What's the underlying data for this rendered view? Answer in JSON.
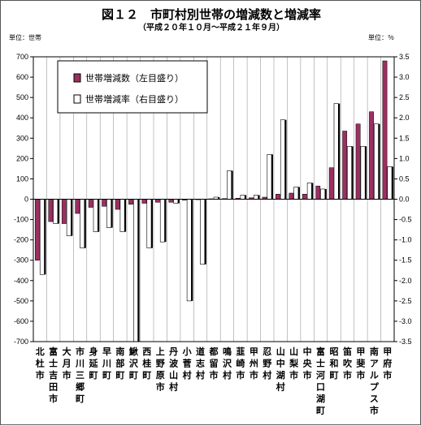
{
  "chart_data": {
    "type": "bar",
    "title": "図１２　市町村別世帯の増減数と増減率",
    "subtitle": "（平成２０年１０月～平成２１年９月）",
    "left_unit": "単位：世帯",
    "right_unit": "単位：％",
    "left_axis": {
      "min": -700,
      "max": 700,
      "step": 100,
      "ticks": [
        "700",
        "600",
        "500",
        "400",
        "300",
        "200",
        "100",
        "0",
        "-100",
        "-200",
        "-300",
        "-400",
        "-500",
        "-600",
        "-700"
      ]
    },
    "right_axis": {
      "min": -3.5,
      "max": 3.5,
      "step": 0.5,
      "ticks": [
        "3.5",
        "3.0",
        "2.5",
        "2.0",
        "1.5",
        "1.0",
        "0.5",
        "0.0",
        "-0.5",
        "-1.0",
        "-1.5",
        "-2.0",
        "-2.5",
        "-3.0",
        "-3.5"
      ]
    },
    "categories": [
      "北杜市",
      "富士吉田市",
      "大月市",
      "市川三郷町",
      "身延町",
      "早川町",
      "南部町",
      "鰍沢町",
      "西桂町",
      "上野原市",
      "丹波山村",
      "小菅村",
      "道志村",
      "都留市",
      "鳴沢村",
      "韮崎市",
      "甲州市",
      "忍野村",
      "山中湖村",
      "山梨市",
      "中央市",
      "富士河口湖町",
      "昭和町",
      "笛吹市",
      "甲斐市",
      "南アルプス市",
      "甲府市"
    ],
    "series": [
      {
        "name": "世帯増減数（左目盛り）",
        "color": "#9c2f62",
        "values": [
          -300,
          -110,
          -120,
          -70,
          -40,
          -35,
          -50,
          -25,
          -20,
          -15,
          -15,
          -5,
          -2,
          2,
          3,
          5,
          7,
          10,
          25,
          30,
          25,
          65,
          155,
          335,
          370,
          430,
          680
        ]
      },
      {
        "name": "世帯増減率（右目盛り）",
        "color": "#ffffff",
        "values": [
          -1.85,
          -0.6,
          -0.9,
          -1.2,
          -0.8,
          -0.7,
          -0.8,
          -3.5,
          -1.2,
          -1.05,
          -0.1,
          -2.5,
          -1.6,
          0.05,
          0.7,
          0.1,
          0.1,
          1.1,
          1.95,
          0.3,
          0.4,
          0.25,
          2.35,
          1.3,
          1.3,
          1.85,
          0.8
        ]
      }
    ],
    "legend_position": "top-left",
    "grid": "vertical"
  }
}
